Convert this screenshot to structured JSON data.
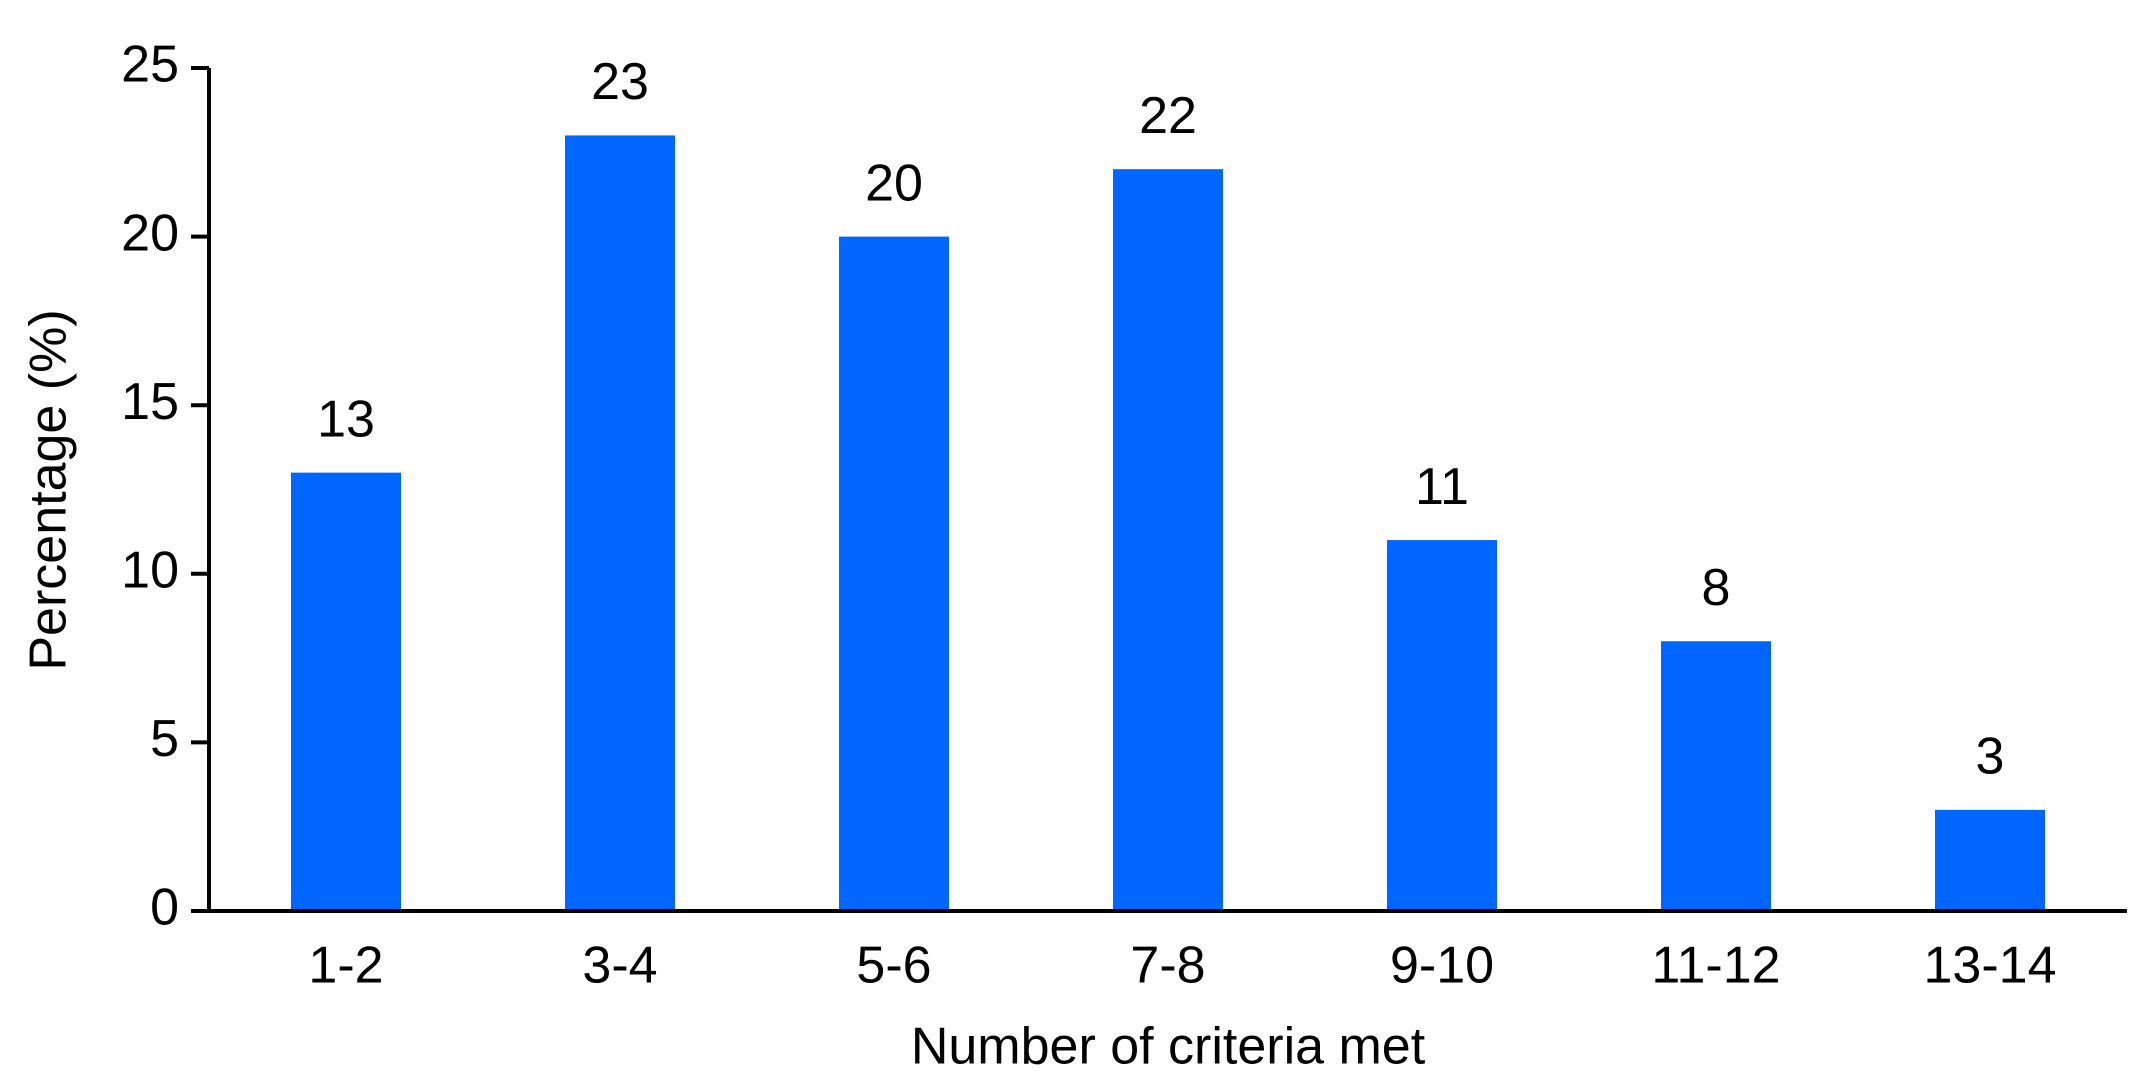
{
  "chart_data": {
    "type": "bar",
    "x_label": "Number of criteria met",
    "y_label": "Percentage (%)",
    "categories": [
      "1-2",
      "3-4",
      "5-6",
      "7-8",
      "9-10",
      "11-12",
      "13-14"
    ],
    "values": [
      13,
      23,
      20,
      22,
      11,
      8,
      3
    ],
    "color": "#0066ff",
    "ylim": [
      0,
      25
    ],
    "yticks": [
      0,
      5,
      10,
      15,
      20,
      25
    ],
    "grid": false
  }
}
